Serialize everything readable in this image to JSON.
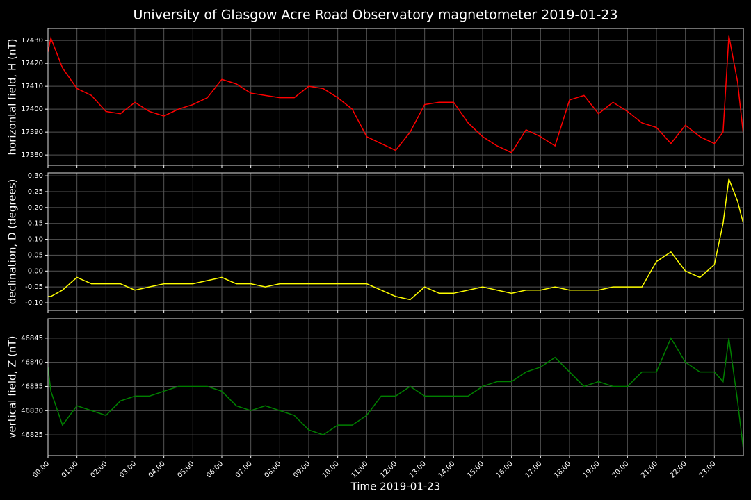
{
  "title": "University of Glasgow Acre Road Observatory magnetometer 2019-01-23",
  "chart_data": [
    {
      "type": "line",
      "ylabel": "horizontal field, H (nT)",
      "color": "#ff0000",
      "grid": true,
      "x": [
        0,
        0.1,
        0.5,
        1,
        1.5,
        2,
        2.5,
        3,
        3.5,
        4,
        4.5,
        5,
        5.5,
        6,
        6.5,
        7,
        7.5,
        8,
        8.5,
        9,
        9.5,
        10,
        10.5,
        11,
        11.5,
        12,
        12.5,
        13,
        13.5,
        14,
        14.5,
        15,
        15.5,
        16,
        16.5,
        17,
        17.5,
        18,
        18.5,
        19,
        19.5,
        20,
        20.5,
        21,
        21.5,
        22,
        22.5,
        23,
        23.3,
        23.5,
        23.8,
        24
      ],
      "values": [
        17425,
        17431,
        17418,
        17409,
        17406,
        17399,
        17398,
        17403,
        17399,
        17397,
        17400,
        17402,
        17405,
        17413,
        17411,
        17407,
        17406,
        17405,
        17405,
        17410,
        17409,
        17405,
        17400,
        17388,
        17385,
        17382,
        17390,
        17402,
        17403,
        17403,
        17394,
        17388,
        17384,
        17381,
        17391,
        17388,
        17384,
        17404,
        17406,
        17398,
        17403,
        17399,
        17394,
        17392,
        17385,
        17393,
        17388,
        17385,
        17390,
        17432,
        17412,
        17389
      ],
      "xlim": [
        0,
        24
      ],
      "ylim": [
        17375.5,
        17435.2
      ],
      "yticks": [
        17380,
        17390,
        17400,
        17410,
        17420,
        17430
      ]
    },
    {
      "type": "line",
      "ylabel": "declination, D (degrees)",
      "color": "#ffff00",
      "grid": true,
      "x": [
        0,
        0.1,
        0.5,
        1,
        1.5,
        2,
        2.5,
        3,
        3.5,
        4,
        4.5,
        5,
        5.5,
        6,
        6.5,
        7,
        7.5,
        8,
        8.5,
        9,
        9.5,
        10,
        10.5,
        11,
        11.5,
        12,
        12.5,
        13,
        13.5,
        14,
        14.5,
        15,
        15.5,
        16,
        16.5,
        17,
        17.5,
        18,
        18.5,
        19,
        19.5,
        20,
        20.5,
        21,
        21.5,
        22,
        22.5,
        23,
        23.3,
        23.5,
        23.8,
        24
      ],
      "values": [
        -0.08,
        -0.08,
        -0.06,
        -0.02,
        -0.04,
        -0.04,
        -0.04,
        -0.06,
        -0.05,
        -0.04,
        -0.04,
        -0.04,
        -0.03,
        -0.02,
        -0.04,
        -0.04,
        -0.05,
        -0.04,
        -0.04,
        -0.04,
        -0.04,
        -0.04,
        -0.04,
        -0.04,
        -0.06,
        -0.08,
        -0.09,
        -0.05,
        -0.07,
        -0.07,
        -0.06,
        -0.05,
        -0.06,
        -0.07,
        -0.06,
        -0.06,
        -0.05,
        -0.06,
        -0.06,
        -0.06,
        -0.05,
        -0.05,
        -0.05,
        0.03,
        0.06,
        0.0,
        -0.02,
        0.02,
        0.15,
        0.29,
        0.22,
        0.15
      ],
      "xlim": [
        0,
        24
      ],
      "ylim": [
        -0.124,
        0.309
      ],
      "yticks": [
        {
          "value": -0.1,
          "label": "-0.10"
        },
        {
          "value": -0.05,
          "label": "-0.05"
        },
        {
          "value": 0,
          "label": "0.00"
        },
        {
          "value": 0.05,
          "label": "0.05"
        },
        {
          "value": 0.1,
          "label": "0.10"
        },
        {
          "value": 0.15,
          "label": "0.15"
        },
        {
          "value": 0.2,
          "label": "0.20"
        },
        {
          "value": 0.25,
          "label": "0.25"
        },
        {
          "value": 0.3,
          "label": "0.30"
        }
      ]
    },
    {
      "type": "line",
      "ylabel": "vertical field, Z (nT)",
      "xlabel": "Time 2019-01-23",
      "color": "#008000",
      "grid": true,
      "x": [
        0,
        0.1,
        0.5,
        1,
        1.5,
        2,
        2.5,
        3,
        3.5,
        4,
        4.5,
        5,
        5.5,
        6,
        6.5,
        7,
        7.5,
        8,
        8.5,
        9,
        9.5,
        10,
        10.5,
        11,
        11.5,
        12,
        12.5,
        13,
        13.5,
        14,
        14.5,
        15,
        15.5,
        16,
        16.5,
        17,
        17.5,
        18,
        18.5,
        19,
        19.5,
        20,
        20.5,
        21,
        21.5,
        22,
        22.5,
        23,
        23.3,
        23.5,
        23.8,
        24
      ],
      "values": [
        46839,
        46834,
        46827,
        46831,
        46830,
        46829,
        46832,
        46833,
        46833,
        46834,
        46835,
        46835,
        46835,
        46834,
        46831,
        46830,
        46831,
        46830,
        46829,
        46826,
        46825,
        46827,
        46827,
        46829,
        46833,
        46833,
        46835,
        46833,
        46833,
        46833,
        46833,
        46835,
        46836,
        46836,
        46838,
        46839,
        46841,
        46838,
        46835,
        46836,
        46835,
        46835,
        46838,
        46838,
        46845,
        46840,
        46838,
        46838,
        46836,
        46845,
        46832,
        46822
      ],
      "xlim": [
        0,
        24
      ],
      "ylim": [
        46820.7,
        46849.0
      ],
      "yticks": [
        46825,
        46830,
        46835,
        46840,
        46845
      ],
      "xticks": [
        {
          "value": 0,
          "label": "00:00"
        },
        {
          "value": 1,
          "label": "01:00"
        },
        {
          "value": 2,
          "label": "02:00"
        },
        {
          "value": 3,
          "label": "03:00"
        },
        {
          "value": 4,
          "label": "04:00"
        },
        {
          "value": 5,
          "label": "05:00"
        },
        {
          "value": 6,
          "label": "06:00"
        },
        {
          "value": 7,
          "label": "07:00"
        },
        {
          "value": 8,
          "label": "08:00"
        },
        {
          "value": 9,
          "label": "09:00"
        },
        {
          "value": 10,
          "label": "10:00"
        },
        {
          "value": 11,
          "label": "11:00"
        },
        {
          "value": 12,
          "label": "12:00"
        },
        {
          "value": 13,
          "label": "13:00"
        },
        {
          "value": 14,
          "label": "14:00"
        },
        {
          "value": 15,
          "label": "15:00"
        },
        {
          "value": 16,
          "label": "16:00"
        },
        {
          "value": 17,
          "label": "17:00"
        },
        {
          "value": 18,
          "label": "18:00"
        },
        {
          "value": 19,
          "label": "19:00"
        },
        {
          "value": 20,
          "label": "20:00"
        },
        {
          "value": 21,
          "label": "21:00"
        },
        {
          "value": 22,
          "label": "22:00"
        },
        {
          "value": 23,
          "label": "23:00"
        }
      ]
    }
  ]
}
